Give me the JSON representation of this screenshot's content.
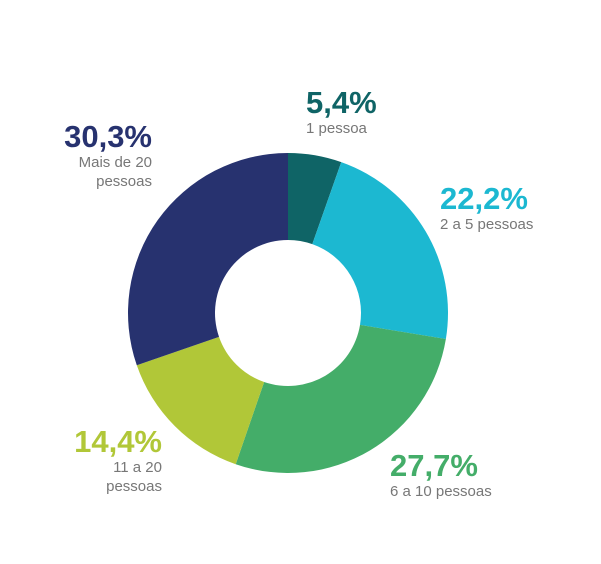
{
  "chart_data": {
    "type": "donut",
    "categories": [
      "1 pessoa",
      "2 a 5 pessoas",
      "6 a 10 pessoas",
      "11 a 20 pessoas",
      "Mais de 20 pessoas"
    ],
    "values": [
      5.4,
      22.2,
      27.7,
      14.4,
      30.3
    ],
    "value_labels": [
      "5,4%",
      "22,2%",
      "27,7%",
      "14,4%",
      "30,3%"
    ],
    "colors": [
      "#0f6466",
      "#1cb8d1",
      "#44ad69",
      "#b1c738",
      "#27326f"
    ]
  }
}
